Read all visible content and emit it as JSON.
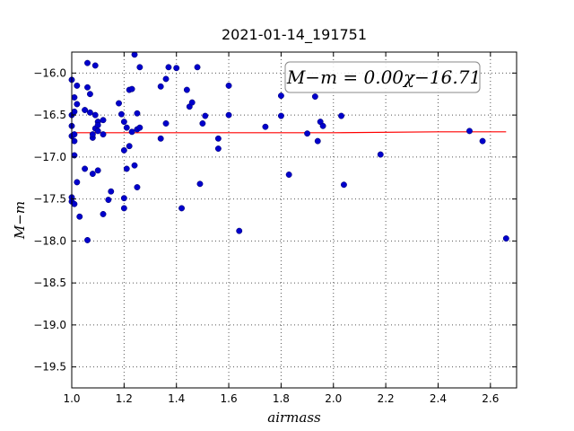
{
  "chart_data": {
    "type": "scatter",
    "title": "2021-01-14_191751",
    "xlabel": "airmass",
    "ylabel": "M−m",
    "xlim": [
      1.0,
      2.7
    ],
    "ylim": [
      -15.75,
      -19.75
    ],
    "y_inverted": true,
    "grid": true,
    "xticks": [
      1.0,
      1.2,
      1.4,
      1.6,
      1.8,
      2.0,
      2.2,
      2.4,
      2.6
    ],
    "xtick_labels": [
      "1.0",
      "1.2",
      "1.4",
      "1.6",
      "1.8",
      "2.0",
      "2.2",
      "2.4",
      "2.6"
    ],
    "yticks": [
      -16.0,
      -16.5,
      -17.0,
      -17.5,
      -18.0,
      -18.5,
      -19.0,
      -19.5
    ],
    "ytick_labels": [
      "−16.0",
      "−16.5",
      "−17.0",
      "−17.5",
      "−18.0",
      "−18.5",
      "−19.0",
      "−19.5"
    ],
    "annotation": "M−m = 0.00χ−16.71",
    "annotation_placement": "top-right",
    "series": [
      {
        "kind": "points",
        "color": "#0000cc",
        "points": [
          [
            1.0,
            -16.08
          ],
          [
            1.0,
            -16.5
          ],
          [
            1.0,
            -16.63
          ],
          [
            1.0,
            -16.75
          ],
          [
            1.0,
            -17.48
          ],
          [
            1.0,
            -17.53
          ],
          [
            1.01,
            -16.29
          ],
          [
            1.01,
            -16.46
          ],
          [
            1.01,
            -16.73
          ],
          [
            1.01,
            -16.81
          ],
          [
            1.01,
            -16.98
          ],
          [
            1.01,
            -17.56
          ],
          [
            1.02,
            -16.37
          ],
          [
            1.02,
            -16.15
          ],
          [
            1.02,
            -17.3
          ],
          [
            1.03,
            -17.71
          ],
          [
            1.05,
            -17.14
          ],
          [
            1.05,
            -16.44
          ],
          [
            1.06,
            -15.88
          ],
          [
            1.06,
            -16.17
          ],
          [
            1.06,
            -17.99
          ],
          [
            1.07,
            -16.25
          ],
          [
            1.07,
            -16.47
          ],
          [
            1.08,
            -16.77
          ],
          [
            1.08,
            -16.73
          ],
          [
            1.08,
            -17.2
          ],
          [
            1.09,
            -15.91
          ],
          [
            1.09,
            -16.5
          ],
          [
            1.09,
            -16.66
          ],
          [
            1.1,
            -16.58
          ],
          [
            1.1,
            -16.62
          ],
          [
            1.1,
            -16.69
          ],
          [
            1.1,
            -17.16
          ],
          [
            1.12,
            -16.56
          ],
          [
            1.12,
            -16.73
          ],
          [
            1.12,
            -17.68
          ],
          [
            1.14,
            -17.51
          ],
          [
            1.15,
            -17.41
          ],
          [
            1.18,
            -16.36
          ],
          [
            1.19,
            -16.49
          ],
          [
            1.2,
            -16.58
          ],
          [
            1.2,
            -16.92
          ],
          [
            1.2,
            -17.49
          ],
          [
            1.2,
            -17.61
          ],
          [
            1.21,
            -16.65
          ],
          [
            1.21,
            -17.14
          ],
          [
            1.22,
            -16.2
          ],
          [
            1.22,
            -16.87
          ],
          [
            1.23,
            -16.19
          ],
          [
            1.23,
            -16.7
          ],
          [
            1.24,
            -15.78
          ],
          [
            1.24,
            -17.1
          ],
          [
            1.25,
            -16.48
          ],
          [
            1.25,
            -16.67
          ],
          [
            1.25,
            -17.36
          ],
          [
            1.26,
            -15.93
          ],
          [
            1.26,
            -16.65
          ],
          [
            1.34,
            -16.16
          ],
          [
            1.34,
            -16.78
          ],
          [
            1.36,
            -16.07
          ],
          [
            1.36,
            -16.6
          ],
          [
            1.37,
            -15.93
          ],
          [
            1.4,
            -15.94
          ],
          [
            1.42,
            -17.61
          ],
          [
            1.44,
            -16.2
          ],
          [
            1.45,
            -16.4
          ],
          [
            1.46,
            -16.35
          ],
          [
            1.48,
            -15.93
          ],
          [
            1.49,
            -17.32
          ],
          [
            1.5,
            -16.6
          ],
          [
            1.51,
            -16.51
          ],
          [
            1.56,
            -16.78
          ],
          [
            1.56,
            -16.9
          ],
          [
            1.6,
            -16.15
          ],
          [
            1.6,
            -16.5
          ],
          [
            1.64,
            -17.88
          ],
          [
            1.74,
            -16.64
          ],
          [
            1.8,
            -16.27
          ],
          [
            1.8,
            -16.51
          ],
          [
            1.83,
            -17.21
          ],
          [
            1.9,
            -16.72
          ],
          [
            1.93,
            -16.28
          ],
          [
            1.94,
            -16.81
          ],
          [
            1.95,
            -16.58
          ],
          [
            1.96,
            -16.63
          ],
          [
            2.03,
            -16.51
          ],
          [
            2.04,
            -17.33
          ],
          [
            2.18,
            -16.97
          ],
          [
            2.52,
            -16.69
          ],
          [
            2.57,
            -16.81
          ],
          [
            2.66,
            -17.97
          ]
        ]
      },
      {
        "kind": "line",
        "color": "#ff0000",
        "x": [
          1.0,
          1.6,
          2.0,
          2.4,
          2.66
        ],
        "y": [
          -16.71,
          -16.71,
          -16.71,
          -16.7,
          -16.7
        ]
      }
    ]
  }
}
